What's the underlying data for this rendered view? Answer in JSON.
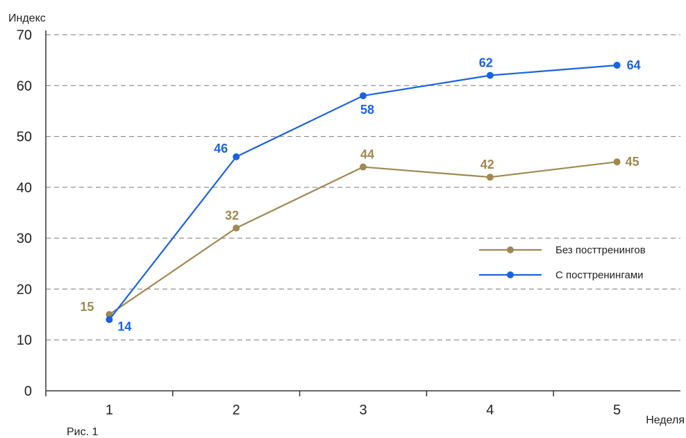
{
  "chart_data": {
    "type": "line",
    "ylabel": "Индекс",
    "xlabel": "Неделя",
    "caption": "Рис. 1",
    "x": [
      1,
      2,
      3,
      4,
      5
    ],
    "ylim": [
      0,
      70
    ],
    "yticks": [
      0,
      10,
      20,
      30,
      40,
      50,
      60,
      70
    ],
    "grid": true,
    "legend_position": "right",
    "series": [
      {
        "name": "Без посттренингов",
        "color": "#a08850",
        "values": [
          15,
          32,
          44,
          42,
          45
        ]
      },
      {
        "name": "С посттренингами",
        "color": "#1a62e0",
        "values": [
          14,
          46,
          58,
          62,
          64
        ]
      }
    ]
  }
}
